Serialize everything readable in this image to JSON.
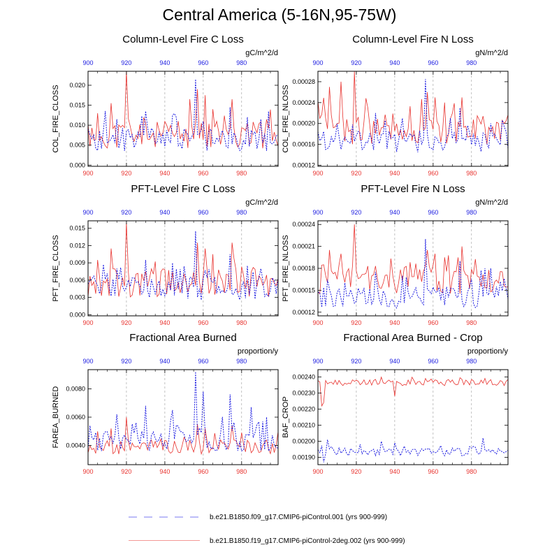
{
  "title": "Central America (5-16N,95-75W)",
  "colors": {
    "red": "#e8322e",
    "blue": "#1a1ae0",
    "grid": "#999999"
  },
  "legend": [
    {
      "label": "b.e21.B1850.f09_g17.CMIP6-piControl.001 (yrs 900-999)",
      "style": "dashed",
      "color": "#7a7af0"
    },
    {
      "label": "b.e21.B1850.f19_g17.CMIP6-piControl-2deg.002 (yrs 900-999)",
      "style": "solid",
      "color": "#e8322e"
    }
  ],
  "panels": [
    {
      "title": "Column-Level Fire C Loss",
      "ylabel": "COL_FIRE_CLOSS",
      "units": "gC/m^2/d"
    },
    {
      "title": "Column-Level Fire N Loss",
      "ylabel": "COL_FIRE_NLOSS",
      "units": "gN/m^2/d"
    },
    {
      "title": "PFT-Level Fire C Loss",
      "ylabel": "PFT_FIRE_CLOSS",
      "units": "gC/m^2/d"
    },
    {
      "title": "PFT-Level Fire N Loss",
      "ylabel": "PFT_FIRE_NLOSS",
      "units": "gN/m^2/d"
    },
    {
      "title": "Fractional Area Burned",
      "ylabel": "FAREA_BURNED",
      "units": "proportion/y"
    },
    {
      "title": "Fractional Area Burned - Crop",
      "ylabel": "BAF_CROP",
      "units": "proportion/y"
    }
  ],
  "chart_data": [
    {
      "type": "line",
      "title": "Column-Level Fire C Loss",
      "ylabel": "COL_FIRE_CLOSS",
      "xlim": [
        900,
        999
      ],
      "ylim": [
        -0.0003,
        0.0235
      ],
      "xticks": [
        900,
        920,
        940,
        960,
        980
      ],
      "yticks": [
        0.0,
        0.005,
        0.01,
        0.015,
        0.02
      ],
      "ytick_labels": [
        "0.000",
        "0.005",
        "0.010",
        "0.015",
        "0.020"
      ],
      "series": [
        {
          "color": "red",
          "base": 0.0075,
          "amp": 0.0035,
          "seed": 11,
          "spikes": [
            [
              920,
              0.0235
            ],
            [
              905,
              0.013
            ],
            [
              912,
              0.0155
            ],
            [
              957,
              0.019
            ],
            [
              961,
              0.0175
            ],
            [
              975,
              0.0165
            ],
            [
              965,
              0.014
            ],
            [
              930,
              0.0105
            ],
            [
              947,
              0.011
            ]
          ],
          "min": 0.0
        },
        {
          "color": "blue",
          "base": 0.0065,
          "amp": 0.003,
          "seed": 23,
          "spikes": [
            [
              956,
              0.0215
            ],
            [
              930,
              0.0135
            ],
            [
              944,
              0.0125
            ],
            [
              915,
              0.0115
            ],
            [
              974,
              0.0145
            ],
            [
              983,
              0.012
            ],
            [
              990,
              0.0115
            ]
          ],
          "min": 0.0035
        }
      ]
    },
    {
      "type": "line",
      "title": "Column-Level Fire N Loss",
      "ylabel": "COL_FIRE_NLOSS",
      "xlim": [
        900,
        999
      ],
      "ylim": [
        0.000118,
        0.0003
      ],
      "xticks": [
        900,
        920,
        940,
        960,
        980
      ],
      "yticks": [
        0.00012,
        0.00016,
        0.0002,
        0.00024,
        0.00028
      ],
      "ytick_labels": [
        "0.00012",
        "0.00016",
        "0.00020",
        "0.00024",
        "0.00028"
      ],
      "series": [
        {
          "color": "red",
          "base": 0.00019,
          "amp": 3e-05,
          "seed": 37,
          "spikes": [
            [
              919,
              0.0003
            ],
            [
              906,
              0.00027
            ],
            [
              912,
              0.00028
            ],
            [
              957,
              0.00026
            ],
            [
              961,
              0.00025
            ],
            [
              966,
              0.00024
            ],
            [
              975,
              0.00025
            ]
          ],
          "min": 0.00012
        },
        {
          "color": "blue",
          "base": 0.000165,
          "amp": 2e-05,
          "seed": 41,
          "spikes": [
            [
              956,
              0.000285
            ],
            [
              930,
              0.00022
            ],
            [
              944,
              0.00021
            ],
            [
              974,
              0.00023
            ],
            [
              990,
              0.0002
            ]
          ],
          "min": 0.00012
        }
      ]
    },
    {
      "type": "line",
      "title": "PFT-Level Fire C Loss",
      "ylabel": "PFT_FIRE_CLOSS",
      "xlim": [
        900,
        999
      ],
      "ylim": [
        -0.0002,
        0.0163
      ],
      "xticks": [
        900,
        920,
        940,
        960,
        980
      ],
      "yticks": [
        0.0,
        0.003,
        0.006,
        0.009,
        0.012,
        0.015
      ],
      "ytick_labels": [
        "0.000",
        "0.003",
        "0.006",
        "0.009",
        "0.012",
        "0.015"
      ],
      "series": [
        {
          "color": "red",
          "base": 0.0055,
          "amp": 0.0025,
          "seed": 53,
          "spikes": [
            [
              920,
              0.016
            ],
            [
              905,
              0.0095
            ],
            [
              912,
              0.0115
            ],
            [
              957,
              0.0125
            ],
            [
              961,
              0.0115
            ],
            [
              975,
              0.0125
            ],
            [
              965,
              0.0105
            ],
            [
              930,
              0.0075
            ]
          ],
          "min": 0.0005
        },
        {
          "color": "blue",
          "base": 0.0045,
          "amp": 0.002,
          "seed": 61,
          "spikes": [
            [
              956,
              0.0145
            ],
            [
              930,
              0.0095
            ],
            [
              944,
              0.009
            ],
            [
              915,
              0.008
            ],
            [
              974,
              0.0105
            ],
            [
              983,
              0.0085
            ],
            [
              990,
              0.008
            ]
          ],
          "min": 0.002
        }
      ]
    },
    {
      "type": "line",
      "title": "PFT-Level Fire N Loss",
      "ylabel": "PFT_FIRE_NLOSS",
      "xlim": [
        900,
        999
      ],
      "ylim": [
        0.000115,
        0.000245
      ],
      "xticks": [
        900,
        920,
        940,
        960,
        980
      ],
      "yticks": [
        0.00012,
        0.00015,
        0.00018,
        0.00021,
        0.00024
      ],
      "ytick_labels": [
        "0.00012",
        "0.00015",
        "0.00018",
        "0.00021",
        "0.00024"
      ],
      "series": [
        {
          "color": "red",
          "base": 0.000165,
          "amp": 2e-05,
          "seed": 71,
          "spikes": [
            [
              919,
              0.00024
            ],
            [
              906,
              0.000205
            ],
            [
              912,
              0.0002
            ],
            [
              957,
              0.000205
            ],
            [
              961,
              0.0002
            ],
            [
              966,
              0.000195
            ],
            [
              975,
              0.00021
            ]
          ],
          "min": 0.00012
        },
        {
          "color": "blue",
          "base": 0.00014,
          "amp": 1.5e-05,
          "seed": 79,
          "spikes": [
            [
              956,
              0.00022
            ],
            [
              930,
              0.000175
            ],
            [
              944,
              0.00017
            ],
            [
              974,
              0.00019
            ],
            [
              990,
              0.00018
            ]
          ],
          "min": 0.000118
        }
      ]
    },
    {
      "type": "line",
      "title": "Fractional Area Burned",
      "ylabel": "FAREA_BURNED",
      "xlim": [
        900,
        999
      ],
      "ylim": [
        0.00265,
        0.00935
      ],
      "xticks": [
        900,
        920,
        940,
        960,
        980
      ],
      "yticks": [
        0.004,
        0.006,
        0.008
      ],
      "ytick_labels": [
        "0.0040",
        "0.0060",
        "0.0080"
      ],
      "series": [
        {
          "color": "red",
          "base": 0.0039,
          "amp": 0.0005,
          "seed": 83,
          "spikes": [
            [
              920,
              0.006
            ],
            [
              905,
              0.005
            ],
            [
              912,
              0.0052
            ],
            [
              957,
              0.0055
            ],
            [
              961,
              0.0052
            ],
            [
              975,
              0.0054
            ]
          ],
          "min": 0.0028
        },
        {
          "color": "blue",
          "base": 0.0043,
          "amp": 0.0007,
          "seed": 89,
          "spikes": [
            [
              956,
              0.0092
            ],
            [
              901,
              0.0054
            ],
            [
              915,
              0.0062
            ],
            [
              930,
              0.0068
            ],
            [
              944,
              0.0065
            ],
            [
              960,
              0.0078
            ],
            [
              974,
              0.0076
            ],
            [
              985,
              0.0067
            ],
            [
              993,
              0.006
            ]
          ],
          "min": 0.003
        }
      ]
    },
    {
      "type": "line",
      "title": "Fractional Area Burned - Crop",
      "ylabel": "BAF_CROP",
      "xlim": [
        900,
        999
      ],
      "ylim": [
        0.001855,
        0.002445
      ],
      "xticks": [
        900,
        920,
        940,
        960,
        980
      ],
      "yticks": [
        0.0019,
        0.002,
        0.0021,
        0.0022,
        0.0023,
        0.0024
      ],
      "ytick_labels": [
        "0.00190",
        "0.00200",
        "0.00210",
        "0.00220",
        "0.00230",
        "0.00240"
      ],
      "series": [
        {
          "color": "red",
          "base": 0.002365,
          "amp": 2e-05,
          "seed": 97,
          "spikes": [
            [
              902,
              0.00222
            ],
            [
              940,
              0.00228
            ],
            [
              903,
              0.00224
            ]
          ],
          "min": 0.0022
        },
        {
          "color": "blue",
          "base": 0.001935,
          "amp": 2.5e-05,
          "seed": 101,
          "spikes": [
            [
              903,
              0.00187
            ],
            [
              905,
              0.00201
            ],
            [
              986,
              0.00202
            ],
            [
              933,
              0.002
            ],
            [
              940,
              0.00199
            ]
          ],
          "min": 0.00186
        }
      ]
    }
  ]
}
